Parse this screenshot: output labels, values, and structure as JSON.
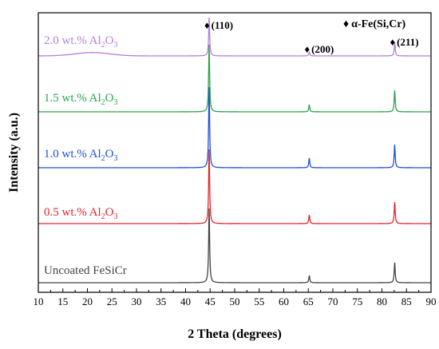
{
  "chart_data": {
    "type": "line",
    "title": "",
    "xlabel": "2 Theta (degrees)",
    "ylabel": "Intensity (a.u.)",
    "xlim": [
      10,
      90
    ],
    "x_ticks": [
      10,
      15,
      20,
      25,
      30,
      35,
      40,
      45,
      50,
      55,
      60,
      65,
      70,
      75,
      80,
      85,
      90
    ],
    "y_ticks_shown": false,
    "legend": {
      "marker": "♦",
      "label": "α-Fe(Si,Cr)",
      "position": "top-right"
    },
    "peak_annotations": [
      {
        "marker": "♦",
        "label": "(110)",
        "x": 44.8
      },
      {
        "marker": "♦",
        "label": "(200)",
        "x": 65.2
      },
      {
        "marker": "♦",
        "label": "(211)",
        "x": 82.6
      }
    ],
    "series": [
      {
        "name_parts": [
          "2.0 wt.% Al",
          "2",
          "O",
          "3"
        ],
        "color": "#b57edc",
        "baseline": 0.0,
        "bump": {
          "center": 21,
          "width": 5,
          "height": 0.07
        },
        "peaks": [
          {
            "x": 44.8,
            "height": 0.8
          },
          {
            "x": 65.2,
            "height": 0.08
          },
          {
            "x": 82.6,
            "height": 0.28
          }
        ]
      },
      {
        "name_parts": [
          "1.5 wt.% Al",
          "2",
          "O",
          "3"
        ],
        "color": "#2ca24a",
        "baseline": 0.0,
        "bump": null,
        "peaks": [
          {
            "x": 44.8,
            "height": 1.4
          },
          {
            "x": 65.2,
            "height": 0.15
          },
          {
            "x": 82.6,
            "height": 0.45
          }
        ]
      },
      {
        "name_parts": [
          "1.0 wt.% Al",
          "2",
          "O",
          "3"
        ],
        "color": "#1f4fd6",
        "baseline": 0.0,
        "bump": null,
        "peaks": [
          {
            "x": 44.8,
            "height": 1.68
          },
          {
            "x": 65.2,
            "height": 0.2
          },
          {
            "x": 82.6,
            "height": 0.48
          }
        ]
      },
      {
        "name_parts": [
          "0.5 wt.% Al",
          "2",
          "O",
          "3"
        ],
        "color": "#e3242b",
        "baseline": 0.0,
        "bump": null,
        "peaks": [
          {
            "x": 44.8,
            "height": 1.55
          },
          {
            "x": 65.2,
            "height": 0.18
          },
          {
            "x": 82.6,
            "height": 0.45
          }
        ]
      },
      {
        "name_parts": [
          "Uncoated FeSiCr"
        ],
        "color": "#444444",
        "baseline": 0.0,
        "bump": null,
        "peaks": [
          {
            "x": 44.8,
            "height": 1.55
          },
          {
            "x": 65.2,
            "height": 0.15
          },
          {
            "x": 82.6,
            "height": 0.42
          }
        ]
      }
    ]
  }
}
